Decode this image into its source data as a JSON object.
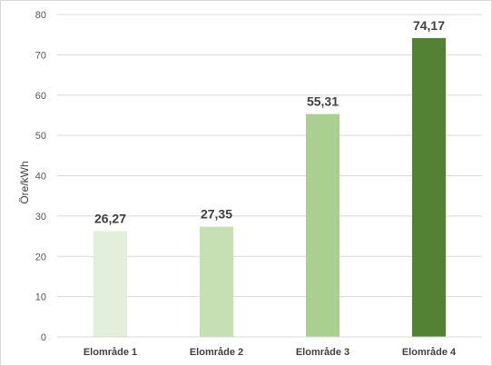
{
  "chart_data": {
    "type": "bar",
    "categories": [
      "Elområde 1",
      "Elområde 2",
      "Elområde 3",
      "Elområde 4"
    ],
    "values": [
      26.27,
      27.35,
      55.31,
      74.17
    ],
    "data_labels": [
      "26,27",
      "27,35",
      "55,31",
      "74,17"
    ],
    "ylabel": "Öre/kWh",
    "xlabel": "",
    "title": "",
    "ylim": [
      0,
      80
    ],
    "yticks": [
      0,
      10,
      20,
      30,
      40,
      50,
      60,
      70,
      80
    ],
    "grid": true,
    "legend": "none",
    "colors": [
      "#e2efda",
      "#c6e0b4",
      "#a9d08e",
      "#548235"
    ]
  }
}
